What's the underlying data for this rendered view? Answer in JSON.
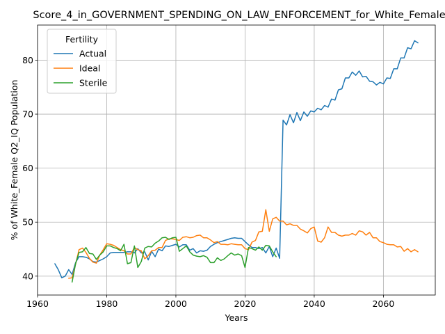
{
  "chart_data": {
    "type": "line",
    "title": "Score_4_in_GOVERNMENT_SPENDING_ON_LAW_ENFORCEMENT_for_White_Female",
    "xlabel": "Years",
    "ylabel": "% of White_Female Q2_IQ Population",
    "xlim": [
      1960,
      2075
    ],
    "ylim": [
      36.5,
      86.5
    ],
    "xticks": [
      1960,
      1980,
      2000,
      2020,
      2040,
      2060
    ],
    "yticks": [
      40,
      50,
      60,
      70,
      80
    ],
    "grid": true,
    "legend": {
      "title": "Fertility",
      "placement": "top-left"
    },
    "series": [
      {
        "name": "Actual",
        "color": "#1f77b4",
        "x": [
          1965,
          1966,
          1967,
          1968,
          1969,
          1970,
          1971,
          1972,
          1973,
          1974,
          1975,
          1976,
          1977,
          1978,
          1979,
          1980,
          1981,
          1982,
          1983,
          1984,
          1985,
          1986,
          1987,
          1988,
          1989,
          1990,
          1991,
          1992,
          1993,
          1994,
          1995,
          1996,
          1997,
          1998,
          1999,
          2000,
          2001,
          2002,
          2003,
          2004,
          2005,
          2006,
          2007,
          2008,
          2009,
          2010,
          2011,
          2012,
          2013,
          2014,
          2015,
          2016,
          2017,
          2018,
          2019,
          2020,
          2021,
          2022,
          2023,
          2024,
          2025,
          2026,
          2027,
          2028,
          2029,
          2030,
          2031,
          2032,
          2033,
          2034,
          2035,
          2036,
          2037,
          2038,
          2039,
          2040,
          2041,
          2042,
          2043,
          2044,
          2045,
          2046,
          2047,
          2048,
          2049,
          2050,
          2051,
          2052,
          2053,
          2054,
          2055,
          2056,
          2057,
          2058,
          2059,
          2060,
          2061,
          2062,
          2063,
          2064,
          2065,
          2066,
          2067,
          2068,
          2069,
          2070
        ],
        "values": [
          42.3,
          41.2,
          39.7,
          40.0,
          41.2,
          40.3,
          42.5,
          43.6,
          43.6,
          43.5,
          43.2,
          42.7,
          42.6,
          42.9,
          43.2,
          43.6,
          44.3,
          44.4,
          44.4,
          44.4,
          44.4,
          44.5,
          44.5,
          44.3,
          45.1,
          44.3,
          44.5,
          43.0,
          44.6,
          43.6,
          45.0,
          44.7,
          45.6,
          45.5,
          45.7,
          45.9,
          45.4,
          45.8,
          45.8,
          44.8,
          45.1,
          44.3,
          44.7,
          44.6,
          44.8,
          45.5,
          45.9,
          46.2,
          46.4,
          46.6,
          46.8,
          47.0,
          47.1,
          47.0,
          47.0,
          46.4,
          45.8,
          45.3,
          45.3,
          45.1,
          45.3,
          44.3,
          45.5,
          43.6,
          45.2,
          43.3,
          68.9,
          68.0,
          69.9,
          68.4,
          70.3,
          68.8,
          70.4,
          69.6,
          70.6,
          70.4,
          71.1,
          70.8,
          71.6,
          71.3,
          72.8,
          72.6,
          74.5,
          74.7,
          76.7,
          76.7,
          77.8,
          77.2,
          78.0,
          76.9,
          77.0,
          76.1,
          76.0,
          75.4,
          75.9,
          75.6,
          76.7,
          76.6,
          78.4,
          78.4,
          80.4,
          80.4,
          82.3,
          82.1,
          83.6,
          83.2
        ]
      },
      {
        "name": "Ideal",
        "color": "#ff7f0e",
        "x": [
          1969,
          1970,
          1971,
          1972,
          1973,
          1974,
          1975,
          1976,
          1977,
          1978,
          1979,
          1980,
          1981,
          1982,
          1983,
          1984,
          1985,
          1986,
          1987,
          1988,
          1989,
          1990,
          1991,
          1992,
          1993,
          1994,
          1995,
          1996,
          1997,
          1998,
          1999,
          2000,
          2001,
          2002,
          2003,
          2004,
          2005,
          2006,
          2007,
          2008,
          2009,
          2010,
          2011,
          2012,
          2013,
          2014,
          2015,
          2016,
          2017,
          2018,
          2019,
          2020,
          2021,
          2022,
          2023,
          2024,
          2025,
          2026,
          2027,
          2028,
          2029,
          2030,
          2031,
          2032,
          2033,
          2034,
          2035,
          2036,
          2037,
          2038,
          2039,
          2040,
          2041,
          2042,
          2043,
          2044,
          2045,
          2046,
          2047,
          2048,
          2049,
          2050,
          2051,
          2052,
          2053,
          2054,
          2055,
          2056,
          2057,
          2058,
          2059,
          2060,
          2061,
          2062,
          2063,
          2064,
          2065,
          2066,
          2067,
          2068,
          2069,
          2070
        ],
        "values": [
          39.6,
          39.7,
          42.2,
          44.9,
          45.2,
          44.4,
          43.3,
          42.6,
          42.4,
          43.9,
          44.9,
          46.0,
          45.9,
          45.7,
          45.3,
          44.9,
          44.7,
          44.1,
          44.1,
          45.3,
          44.9,
          44.7,
          43.2,
          43.8,
          44.7,
          44.8,
          45.3,
          45.3,
          46.6,
          46.9,
          46.9,
          46.8,
          46.6,
          47.2,
          47.3,
          47.1,
          47.2,
          47.5,
          47.6,
          47.1,
          47.1,
          46.7,
          46.2,
          46.4,
          45.9,
          45.9,
          45.8,
          46.0,
          45.9,
          45.8,
          45.8,
          45.1,
          44.9,
          46.3,
          46.6,
          48.2,
          48.3,
          52.3,
          48.3,
          50.6,
          50.9,
          50.2,
          50.2,
          49.5,
          49.7,
          49.4,
          49.4,
          48.7,
          48.4,
          48.0,
          48.8,
          49.1,
          46.5,
          46.3,
          47.1,
          49.1,
          48.1,
          48.1,
          47.6,
          47.4,
          47.6,
          47.6,
          47.9,
          47.6,
          48.4,
          48.2,
          47.6,
          48.1,
          47.1,
          47.1,
          46.4,
          46.2,
          45.9,
          45.8,
          45.8,
          45.4,
          45.5,
          44.6,
          45.1,
          44.5,
          44.9,
          44.5
        ]
      },
      {
        "name": "Sterile",
        "color": "#2ca02c",
        "x": [
          1970,
          1971,
          1972,
          1973,
          1974,
          1975,
          1976,
          1977,
          1978,
          1979,
          1980,
          1981,
          1982,
          1983,
          1984,
          1985,
          1986,
          1987,
          1988,
          1989,
          1990,
          1991,
          1992,
          1993,
          1994,
          1995,
          1996,
          1997,
          1998,
          1999,
          2000,
          2001,
          2002,
          2003,
          2004,
          2005,
          2006,
          2007,
          2008,
          2009,
          2010,
          2011,
          2012,
          2013,
          2014,
          2015,
          2016,
          2017,
          2018,
          2019,
          2020,
          2021,
          2022,
          2023,
          2024,
          2025,
          2026,
          2027,
          2028,
          2029
        ],
        "values": [
          38.9,
          42.3,
          44.4,
          44.5,
          45.3,
          44.2,
          44.1,
          43.1,
          43.9,
          44.5,
          45.6,
          45.6,
          45.3,
          45.1,
          44.7,
          45.9,
          42.3,
          42.5,
          45.6,
          41.6,
          42.7,
          45.2,
          45.5,
          45.4,
          46.1,
          46.5,
          47.1,
          47.2,
          46.8,
          47.1,
          47.2,
          44.6,
          45.1,
          45.6,
          44.5,
          43.9,
          43.7,
          43.6,
          43.8,
          43.5,
          42.5,
          42.5,
          43.4,
          42.9,
          43.2,
          43.8,
          44.3,
          43.9,
          44.1,
          43.8,
          41.6,
          45.3,
          45.1,
          44.8,
          45.4,
          44.8,
          45.7,
          45.6,
          44.5,
          43.6
        ]
      }
    ]
  }
}
